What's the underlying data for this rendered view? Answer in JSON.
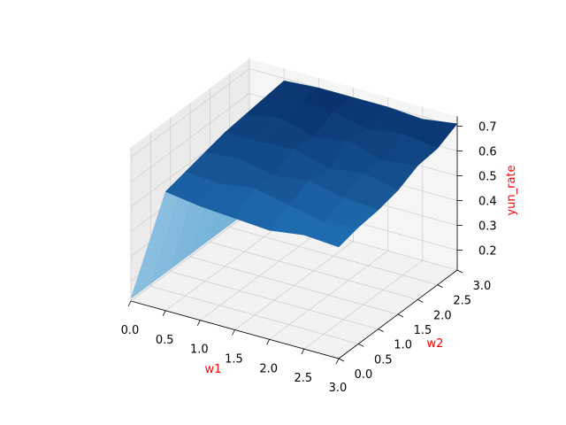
{
  "chart_data": {
    "type": "surface",
    "xlabel": "w1",
    "ylabel": "w2",
    "zlabel": "yun_rate",
    "label_color": "#ff0000",
    "colormap": "Blues",
    "xlim": [
      0,
      3
    ],
    "ylim": [
      0,
      3
    ],
    "zlim": [
      0.12,
      0.74
    ],
    "x_ticks": [
      "0.0",
      "0.5",
      "1.0",
      "1.5",
      "2.0",
      "2.5",
      "3.0"
    ],
    "y_ticks": [
      "0.0",
      "0.5",
      "1.0",
      "1.5",
      "2.0",
      "2.5",
      "3.0"
    ],
    "z_ticks": [
      "0.2",
      "0.3",
      "0.4",
      "0.5",
      "0.6",
      "0.7"
    ],
    "grid": true,
    "x": [
      0,
      0.5,
      1.0,
      1.5,
      2.0,
      2.5,
      3.0
    ],
    "y": [
      0,
      0.5,
      1.0,
      1.5,
      2.0,
      2.5,
      3.0
    ],
    "z": [
      [
        0.13,
        0.13,
        0.13,
        0.13,
        0.13,
        0.13,
        0.13
      ],
      [
        0.6,
        0.62,
        0.64,
        0.66,
        0.67,
        0.68,
        0.69
      ],
      [
        0.58,
        0.61,
        0.65,
        0.66,
        0.7,
        0.71,
        0.7
      ],
      [
        0.57,
        0.63,
        0.62,
        0.67,
        0.66,
        0.7,
        0.7
      ],
      [
        0.56,
        0.6,
        0.64,
        0.63,
        0.68,
        0.67,
        0.7
      ],
      [
        0.58,
        0.57,
        0.61,
        0.65,
        0.64,
        0.69,
        0.69
      ],
      [
        0.57,
        0.59,
        0.6,
        0.62,
        0.66,
        0.67,
        0.71
      ]
    ]
  }
}
